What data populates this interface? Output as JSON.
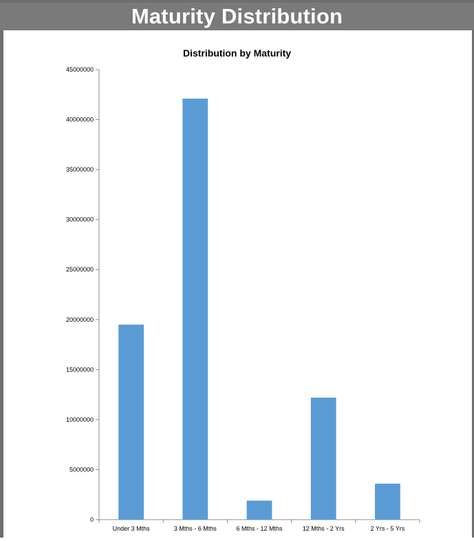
{
  "header": {
    "title": "Maturity Distribution"
  },
  "colors": {
    "header_bg": "#7a7a7a",
    "bar_fill": "#5b9bd5",
    "axis": "#8c8c8c"
  },
  "chart_data": {
    "type": "bar",
    "title": "Distribution by Maturity",
    "xlabel": "",
    "ylabel": "",
    "categories": [
      "Under 3 Mths",
      "3 Mths - 6 Mths",
      "6 Mths - 12 Mths",
      "12 Mths - 2 Yrs",
      "2 Yrs - 5 Yrs"
    ],
    "values": [
      19500000,
      42100000,
      1900000,
      12200000,
      3600000
    ],
    "ylim": [
      0,
      45000000
    ],
    "yticks": [
      "0",
      "5000000",
      "10000000",
      "15000000",
      "20000000",
      "25000000",
      "30000000",
      "35000000",
      "40000000",
      "45000000"
    ],
    "grid": false,
    "legend": "none"
  }
}
